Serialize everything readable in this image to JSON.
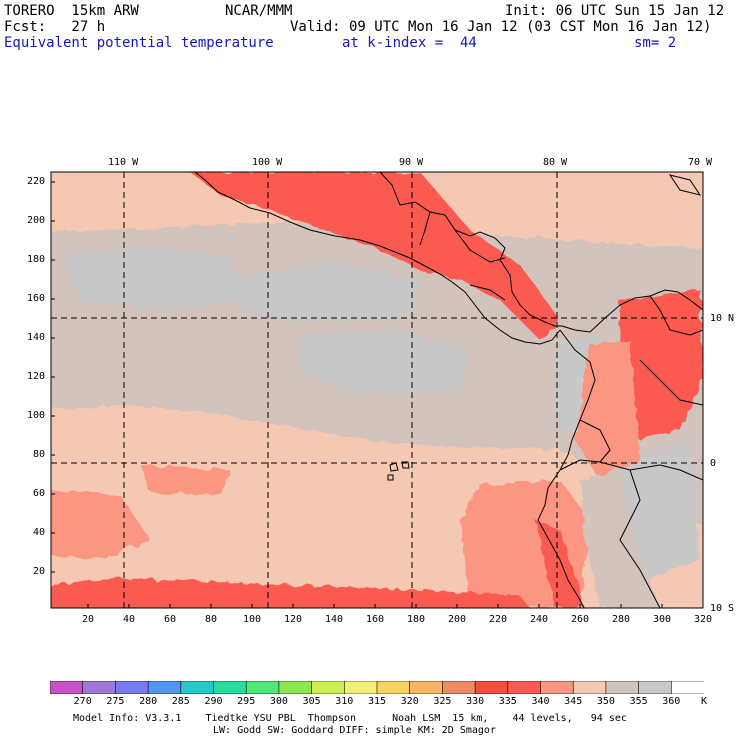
{
  "header": {
    "model": "TORERO  15km ARW",
    "center": "NCAR/MMM",
    "init": "Init: 06 UTC Sun 15 Jan 12",
    "fcst": "Fcst:   27 h",
    "valid": "Valid: 09 UTC Mon 16 Jan 12 (03 CST Mon 16 Jan 12)",
    "field": "Equivalent potential temperature",
    "level": "at k-index =  44",
    "smooth": "sm= 2"
  },
  "axes": {
    "lon_labels": [
      "110 W",
      "100 W",
      "90 W",
      "80 W",
      "70 W"
    ],
    "lat_labels": [
      "10 N",
      "0",
      "10 S"
    ],
    "x_ticks": [
      "20",
      "40",
      "60",
      "80",
      "100",
      "120",
      "140",
      "160",
      "180",
      "200",
      "220",
      "240",
      "260",
      "280",
      "300",
      "320"
    ],
    "y_ticks": [
      "220",
      "200",
      "180",
      "160",
      "140",
      "120",
      "100",
      "80",
      "60",
      "40",
      "20"
    ]
  },
  "colorbar": {
    "labels": [
      "270",
      "275",
      "280",
      "285",
      "290",
      "295",
      "300",
      "305",
      "310",
      "315",
      "320",
      "325",
      "330",
      "335",
      "340",
      "345",
      "350",
      "355",
      "360",
      "K"
    ],
    "colors": [
      "#c850c8",
      "#a078dc",
      "#7878f0",
      "#5096f0",
      "#28c8c8",
      "#28dca0",
      "#50e678",
      "#8ce650",
      "#c8f050",
      "#f0f078",
      "#fad264",
      "#fab464",
      "#f08c64",
      "#f0503c",
      "#fa5a50",
      "#fa9682",
      "#f5c8b4",
      "#d2c3bc",
      "#c8c8c8",
      "#ffffff"
    ]
  },
  "footer": {
    "line1": "Model Info: V3.3.1    Tiedtke YSU PBL  Thompson      Noah LSM  15 km,    44 levels,   94 sec",
    "line2": "LW: Godd SW: Goddard DIFF: simple KM: 2D Smagor"
  }
}
